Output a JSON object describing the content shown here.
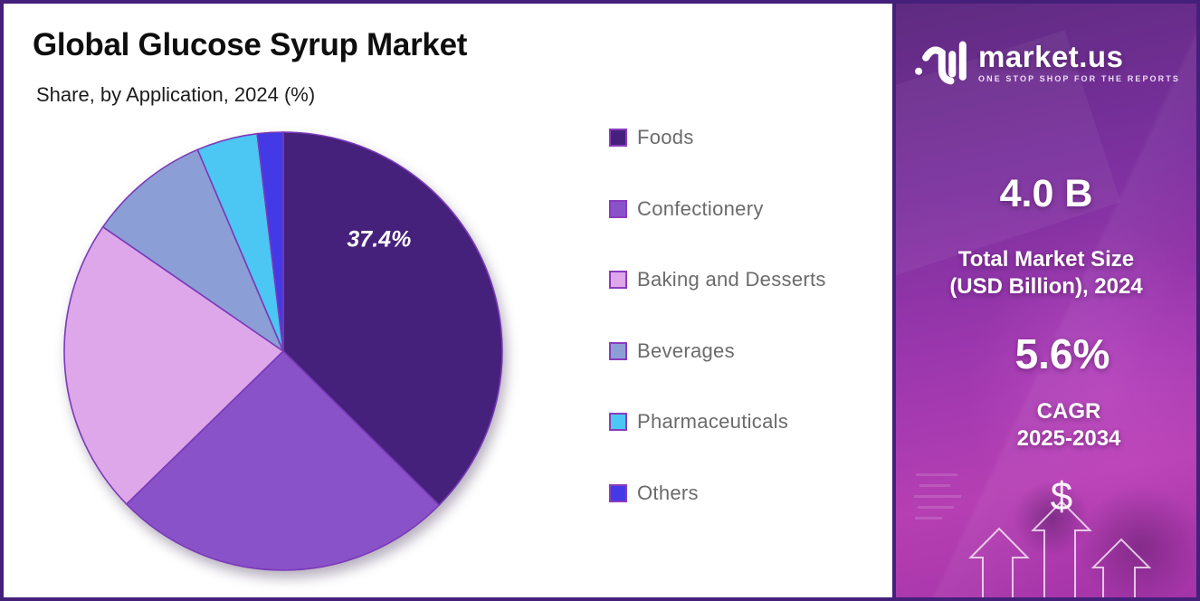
{
  "panel": {
    "title": "Global Glucose Syrup Market",
    "subtitle": "Share, by Application, 2024 (%)"
  },
  "chart_data": {
    "type": "pie",
    "title": "Global Glucose Syrup Market",
    "subtitle": "Share, by Application, 2024 (%)",
    "unit": "%",
    "start_angle_deg": 0,
    "direction": "clockwise",
    "categories": [
      "Foods",
      "Confectionery",
      "Baking and Desserts",
      "Beverages",
      "Pharmaceuticals",
      "Others"
    ],
    "values": [
      37.4,
      25.3,
      21.9,
      9.0,
      4.5,
      1.9
    ],
    "colors": [
      "#45217b",
      "#8a52c9",
      "#dda7ea",
      "#8b9fd6",
      "#4cc6f2",
      "#4339e6"
    ],
    "labeled_slice": {
      "category": "Foods",
      "text": "37.4%"
    },
    "legend_position": "right",
    "note": "Only the Foods slice shows a data label (37.4%); remaining values estimated from slice angles."
  },
  "sidebar": {
    "logo": {
      "brand": "market.us",
      "tagline": "ONE STOP SHOP FOR THE REPORTS"
    },
    "market_size_value": "4.0 B",
    "market_size_label_line1": "Total Market Size",
    "market_size_label_line2": "(USD Billion), 2024",
    "cagr_value": "5.6%",
    "cagr_label_line1": "CAGR",
    "cagr_label_line2": "2025-2034",
    "dollar_symbol": "$"
  },
  "colors": {
    "canvas_border": "#45207a",
    "slice_stroke": "#7a3ab8",
    "legend_text": "#6b6b6b",
    "pie_label": "#ffffff",
    "sidebar_gradient_top": "#5e2b80",
    "sidebar_gradient_bottom": "#a434a8"
  }
}
